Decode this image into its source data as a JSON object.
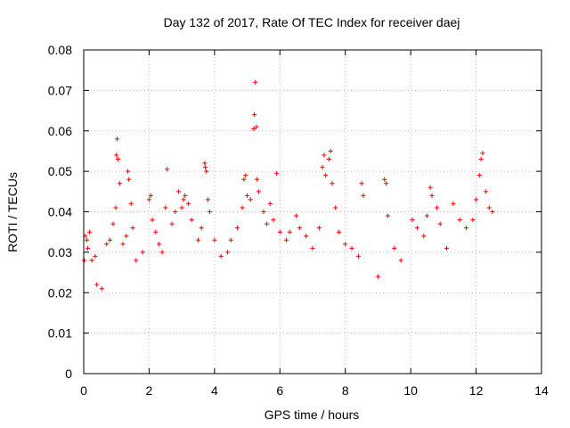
{
  "chart_data": {
    "type": "scatter",
    "title": "Day 132 of 2017, Rate Of TEC Index for receiver daej",
    "xlabel": "GPS time / hours",
    "ylabel": "ROTI / TECUs",
    "xlim": [
      0,
      14
    ],
    "ylim": [
      0,
      0.08
    ],
    "x_ticks": [
      "0",
      "2",
      "4",
      "6",
      "8",
      "10",
      "12",
      "14"
    ],
    "y_ticks": [
      "0",
      "0.01",
      "0.02",
      "0.03",
      "0.04",
      "0.05",
      "0.06",
      "0.07",
      "0.08"
    ],
    "grid": true,
    "marker": "plus",
    "marker_color": "#ff0000",
    "data_gaps_hours": [
      [
        8.65,
        8.95
      ],
      [
        9.85,
        10.0
      ]
    ],
    "data_end_hours": 12.55,
    "series": [
      {
        "name": "",
        "color": "#ff0000",
        "points": [
          [
            0.02,
            0.028
          ],
          [
            0.05,
            0.034
          ],
          [
            0.1,
            0.033
          ],
          [
            0.12,
            0.031
          ],
          [
            0.18,
            0.035
          ],
          [
            0.25,
            0.028
          ],
          [
            0.35,
            0.029
          ],
          [
            0.4,
            0.022
          ],
          [
            0.55,
            0.021
          ],
          [
            0.7,
            0.032
          ],
          [
            0.8,
            0.033
          ],
          [
            0.9,
            0.037
          ],
          [
            0.98,
            0.041
          ],
          [
            1.0,
            0.054
          ],
          [
            1.02,
            0.058
          ],
          [
            1.05,
            0.053
          ],
          [
            1.1,
            0.047
          ],
          [
            1.2,
            0.032
          ],
          [
            1.3,
            0.034
          ],
          [
            1.35,
            0.05
          ],
          [
            1.38,
            0.048
          ],
          [
            1.45,
            0.042
          ],
          [
            1.5,
            0.036
          ],
          [
            1.6,
            0.028
          ],
          [
            1.8,
            0.03
          ],
          [
            2.0,
            0.043
          ],
          [
            2.05,
            0.044
          ],
          [
            2.1,
            0.038
          ],
          [
            2.2,
            0.035
          ],
          [
            2.3,
            0.032
          ],
          [
            2.4,
            0.03
          ],
          [
            2.5,
            0.041
          ],
          [
            2.55,
            0.0505
          ],
          [
            2.7,
            0.037
          ],
          [
            2.8,
            0.04
          ],
          [
            2.9,
            0.045
          ],
          [
            3.0,
            0.041
          ],
          [
            3.05,
            0.043
          ],
          [
            3.1,
            0.044
          ],
          [
            3.2,
            0.042
          ],
          [
            3.3,
            0.038
          ],
          [
            3.5,
            0.033
          ],
          [
            3.6,
            0.036
          ],
          [
            3.7,
            0.052
          ],
          [
            3.72,
            0.051
          ],
          [
            3.75,
            0.05
          ],
          [
            3.8,
            0.043
          ],
          [
            3.85,
            0.04
          ],
          [
            4.0,
            0.033
          ],
          [
            4.2,
            0.029
          ],
          [
            4.4,
            0.03
          ],
          [
            4.5,
            0.033
          ],
          [
            4.7,
            0.036
          ],
          [
            4.85,
            0.041
          ],
          [
            4.9,
            0.048
          ],
          [
            4.95,
            0.049
          ],
          [
            5.0,
            0.044
          ],
          [
            5.1,
            0.043
          ],
          [
            5.2,
            0.0605
          ],
          [
            5.22,
            0.064
          ],
          [
            5.25,
            0.072
          ],
          [
            5.28,
            0.061
          ],
          [
            5.3,
            0.048
          ],
          [
            5.35,
            0.045
          ],
          [
            5.5,
            0.04
          ],
          [
            5.6,
            0.037
          ],
          [
            5.7,
            0.042
          ],
          [
            5.8,
            0.038
          ],
          [
            5.9,
            0.0495
          ],
          [
            6.0,
            0.035
          ],
          [
            6.2,
            0.033
          ],
          [
            6.3,
            0.035
          ],
          [
            6.5,
            0.039
          ],
          [
            6.6,
            0.036
          ],
          [
            6.8,
            0.034
          ],
          [
            7.0,
            0.031
          ],
          [
            7.2,
            0.036
          ],
          [
            7.3,
            0.051
          ],
          [
            7.35,
            0.054
          ],
          [
            7.4,
            0.049
          ],
          [
            7.5,
            0.053
          ],
          [
            7.55,
            0.055
          ],
          [
            7.6,
            0.047
          ],
          [
            7.7,
            0.041
          ],
          [
            7.8,
            0.035
          ],
          [
            8.0,
            0.032
          ],
          [
            8.2,
            0.031
          ],
          [
            8.4,
            0.029
          ],
          [
            8.5,
            0.047
          ],
          [
            8.55,
            0.044
          ],
          [
            9.0,
            0.024
          ],
          [
            9.2,
            0.048
          ],
          [
            9.25,
            0.047
          ],
          [
            9.3,
            0.039
          ],
          [
            9.5,
            0.031
          ],
          [
            9.7,
            0.028
          ],
          [
            10.05,
            0.038
          ],
          [
            10.2,
            0.036
          ],
          [
            10.4,
            0.034
          ],
          [
            10.5,
            0.039
          ],
          [
            10.6,
            0.046
          ],
          [
            10.65,
            0.044
          ],
          [
            10.8,
            0.041
          ],
          [
            10.9,
            0.037
          ],
          [
            11.1,
            0.031
          ],
          [
            11.3,
            0.042
          ],
          [
            11.5,
            0.038
          ],
          [
            11.7,
            0.036
          ],
          [
            11.9,
            0.038
          ],
          [
            12.0,
            0.043
          ],
          [
            12.1,
            0.049
          ],
          [
            12.15,
            0.053
          ],
          [
            12.2,
            0.0545
          ],
          [
            12.3,
            0.045
          ],
          [
            12.4,
            0.041
          ],
          [
            12.5,
            0.04
          ]
        ]
      }
    ]
  }
}
